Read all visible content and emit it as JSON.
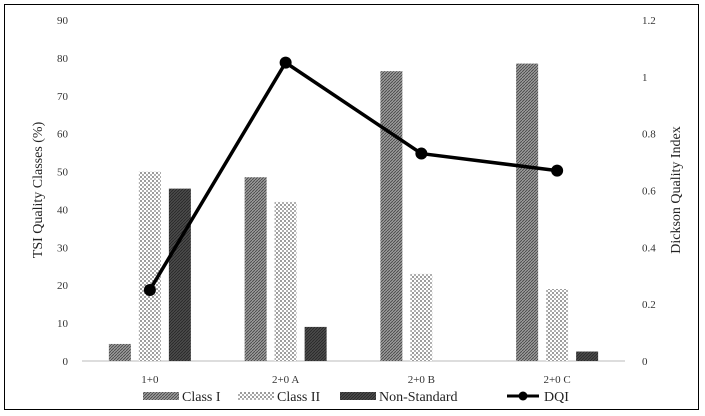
{
  "chart_data": {
    "type": "bar",
    "categories": [
      "1+0",
      "2+0 A",
      "2+0 B",
      "2+0 C"
    ],
    "series": [
      {
        "name": "Class I",
        "axis": "left",
        "kind": "bar",
        "pattern": "hatch-dense",
        "values": [
          4.5,
          48.5,
          76.5,
          78.5
        ]
      },
      {
        "name": "Class II",
        "axis": "left",
        "kind": "bar",
        "pattern": "dots",
        "values": [
          50,
          42,
          23,
          19
        ]
      },
      {
        "name": "Non-Standard",
        "axis": "left",
        "kind": "bar",
        "pattern": "dark",
        "values": [
          45.5,
          9,
          0,
          2.5
        ]
      },
      {
        "name": "DQI",
        "axis": "right",
        "kind": "line",
        "values": [
          0.25,
          1.05,
          0.73,
          0.67
        ]
      }
    ],
    "ylabel": "TSI Quality Classes (%)",
    "ylabel_right": "Dickson Quality Index",
    "ylim": [
      0,
      90
    ],
    "ylim_right": [
      0,
      1.2
    ],
    "yticks": [
      "0",
      "10",
      "20",
      "30",
      "40",
      "50",
      "60",
      "70",
      "80",
      "90"
    ],
    "yticks_right": [
      "0",
      "0.2",
      "0.4",
      "0.6",
      "0.8",
      "1",
      "1.2"
    ],
    "grid": false,
    "legend_position": "bottom",
    "colors": {
      "bar_dark": "#555555",
      "line": "#000000"
    }
  }
}
